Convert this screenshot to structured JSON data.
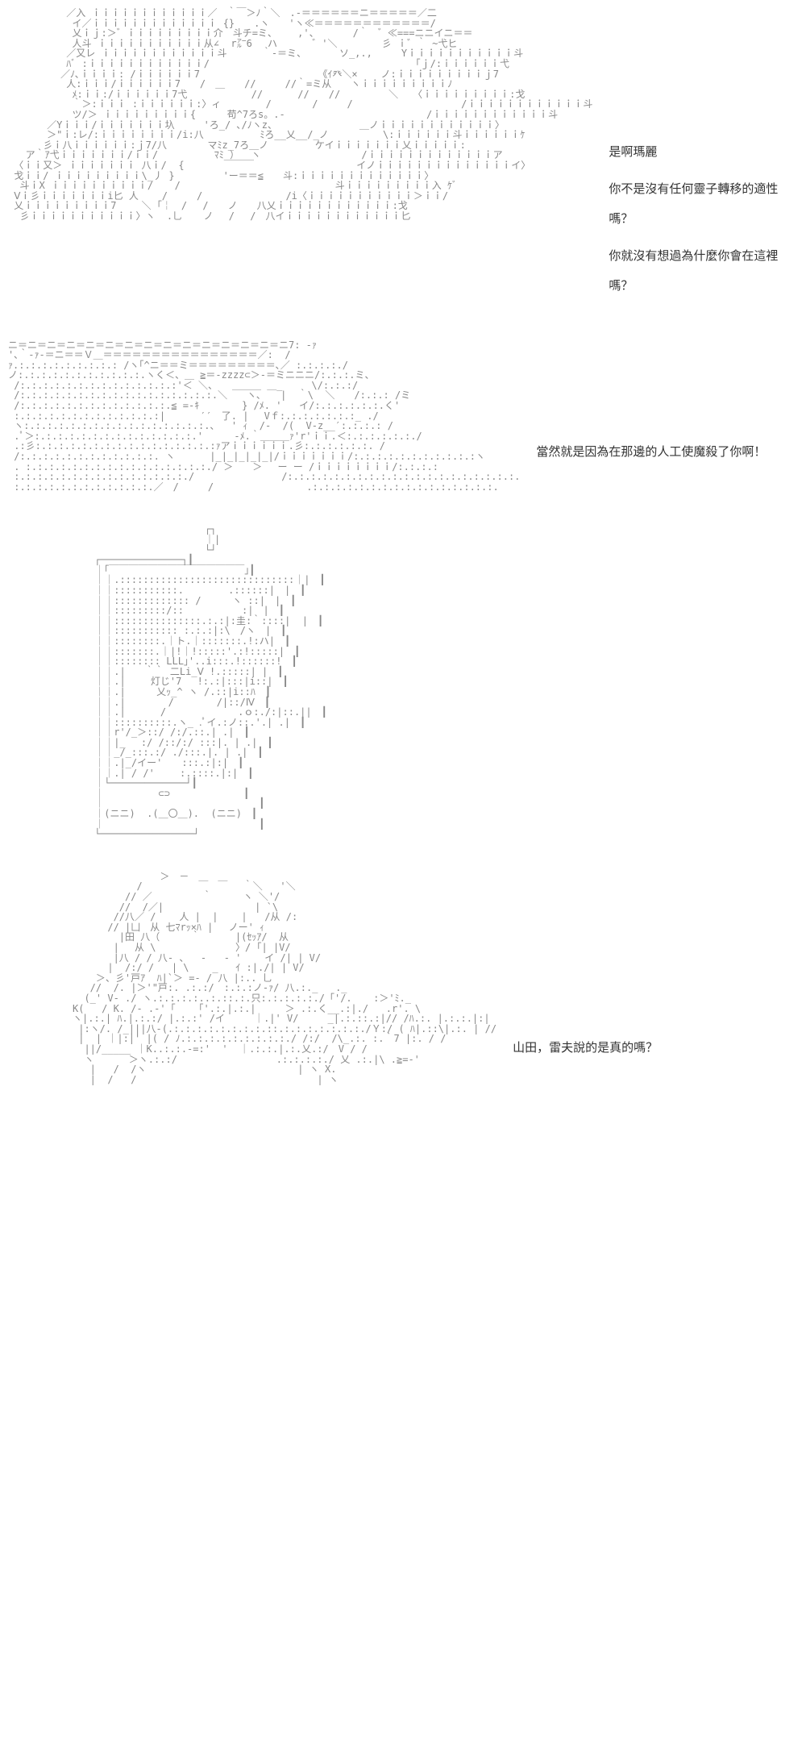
{
  "panels": [
    {
      "ascii": "          ／入 ｉｉｉｉｉｉｉｉｉｉｉｉ／　｀￣＞ﾉ｀＼　.-＝＝＝＝＝＝ニ＝＝＝＝＝／二\n           イ／ｉｉｉｉｉｉｉｉｉｉｉｉｉ {}　　.ヽ　　'ヽ≪＝＝＝＝＝＝＝＝＝＝＝＝/\n           乂ｉｊ:＞゛ｉｉｉｉｉｉｉｉｉ介　斗チ=ミ、　　 ,'、　　　　/｀　゛≪===ニニイニ＝＝\n           人斗 ｉｉｉｉｉｉｉｉｉｉｉ从∠  r㌃6 　ハ　　　 ゛'＼ 　　　　彡 ｉ゛｀ ~弋ヒ\n          ／又レ ｉｉｉｉｉｉｉｉｉｉｉｉ斗      ｀-＝ミ、    　ソ_,.,　　　Yｉｉｉｉｉｉｉｉｉｉｉ斗\n          ﾊﾞ :ｉｉｉｉｉｉｉｉｉｉｉｉ/　　　　　　　　　　　　　　　　　　　   「ｊ/:ｉｉｉｉｉｉ弋\n         ／ﾉ､ｉｉｉｉ: /ｉｉｉｉｉｉ7　　　　　　　　　　　  《ｲ癶＼×    ノ:ｉｉｉｉｉｉｉｉｉｊ7\n          人:ｉｉｉ/ｉｉｉｉｉｉ7　　/　＿　　//　　　//｀=ミ从　　ヽｉｉｉｉｉｉｉｉｉﾉ\n           ﾒ:ｉｉ:/ｉｉｉｉｉｉ7弋　　　　　　 // 　　　//　　//　　　　　＼　　〈ｉｉｉｉｉｉｉｉｉ:戈\n           ｀＞:ｉｉｉ :ｉｉｉｉｉｉ:〉ィ　　　　 /　　　  /　　　/ 　　　　　　　　　　 /ｉｉｉｉｉｉｉｉｉｉｉｉ斗\n           ツ/＞ ｉｉｉｉｉｉｉｉｉ{  　　苟^7ろs。.-　　　　　　　　 　　　　　　/ｉｉｉｉｉｉｉｉｉｉｉｉ斗\n　     ／Yｉｉｉ/ｉｉｉｉｉｉｉ圦　　　'ろ_/ ､/ﾉヽz、　　　　　　　　　＿ノｉｉｉｉｉｉｉｉｉｉｉｉ〉\n     　＞\"ｉ:レ/:ｉｉｉｉｉｉｉｉ/i:八　　　 　  ﾐろ__乂__/_ノ　　　 　　\\:ｉｉｉｉｉｉ斗ｉｉｉｉｉｉｹ\n      彡ｉ八ｉｉｉｉｉｉ:ｊ7/八  　　　マﾐz_7ろ＿ノ　 　  　ケイｉｉｉｉｉｉｉ乂ｉｉｉｉｉ:\n   ア｀ｱ弋ｉｉｉｉｉｉｉ/ｉｉ/  　　　　 ﾏﾐ_）  ヽ　　　　　　　　    /ｉｉｉｉｉｉｉｉｉｉｉｉｉア\n 〈ｉｉ又＞ ｉｉｉｉｉｉｉ 八ｉ/  {  　　　￣￣￣　　　　　　　　 　　イノｉｉｉｉｉｉｉｉｉｉｉｉｉｉイ〉\n 戈ｉｉ/ ｉｉｉｉｉｉｉｉｉ\\_丿 }　　　　　'ー＝＝≦　　斗:ｉｉｉｉｉｉｉｉｉｉｉｉｉ〉\n  斗ｉX ｉｉｉｉｉｉｉｉｉｉ/　  /　　　　　　　　　　　　　　　　斗ｉｉｉｉｉｉｉｉｉ入 ｹﾞ\n Ⅴｉ彡ｉｉｉｉｉｉｉi匕 人    /　　　/　　　　　　　　 /i〈ｉｉｉｉｉｉｉｉｉｉｉ＞ｉｉ/\n 乂ｉｉｉｉｉｉｉｉｉ7　　 ＼ ｢￤　/　 /　　ノ　　八乂ｉｉｉｉｉｉｉｉｉｉｉｉ:戈\n  彡ｉｉｉｉｉｉｉｉｉｉｉ〉ヽ  .乚　  ノ　 /　 /　八イｉｉｉｉｉｉｉｉｉｉｉｉ匕",
      "lines": [
        "是啊瑪麗",
        "你不是沒有任何靈子轉移的適性嗎？",
        "你就沒有想過為什麼你會在這裡嗎？"
      ]
    },
    {
      "ascii": "ニ＝ニ＝ニ＝ニ＝ニ＝ニ＝ニ＝ニ＝ニ＝ニ＝ニ＝ニ＝ニ＝ニ＝ニ7: -ｧ\n'､｀-ｧ-＝ニ＝＝Ｖ＿＝＝＝＝＝＝＝＝＝＝＝＝＝＝＝＝／:  /\nｧ.:.:.:.:.:.:.:.:.: /ヽ｢^ニ＝＝ミ＝＝＝＝＝＝＝＝＝､／ :.:.:.:./\nノ:.:.:.:.:.:.:.:.:.:.:.ヽく＜、＿ ≧＝-zzzz⊂＞-＝ミニニニ/:.:.:.ミ、\n /:.:.:.:.:.:.:.:.:.:.:.:.:.:'＜ ＼、　　＿＿＿ ＿_　　　\\/:.:.:/\n /:.:.:.:.:.:.:.:.:.:.:.:.:.:.:.:.:.＼　　ヽ､　　|  ｀\\  ＼　　/:.:.: /ミ\n /:.:.:.:.:.:.:.:.:.:.:.:.:.≦ =-ｷ　  　  } /ﾒ. '   イ/:.:.:.:.:.:.く'\n :.:.:.:.:.:.:.:.:.:.:.:.:| 　　　′′　了. | 　Vｆ:.:.:.:.:.:.:_ ./\n ヽ:.:.:.:.:.:.:.:.:.:.:.:.:.:.:.:.、  ' ｨ  /-  /(  V-z__′:.:.:.: /\n .ﾟ＞:.:.:.:.:.:.:.:.:.:.:.:.:.:.' 　　 -ﾒ.｀＿＿＿ｧ'r'ｉｉ.＜:.:.:.:.:.:./\n .:彡:.:.:.:.:.:.:.:.:.:.:.:.:.:.:.:ｧアｉｉｉｉｉｉ.彡:.:.:.:.:.:. /\n /:.:.:.:.:.:.:.:.:.:.:.:. ヽ　　　 |_|_|_|_|_|/ｉｉｉｉｉｉｉ/:.:.:.:.:.:.:.:.:.:.:ヽ\n . :.:.:.:.:.:.:.:.:.:.:.:.:.:.:.:./ ＞　　＞　 ー ー /ｉｉｉｉｉｉｉｉ/:.:.:.:\n :.:.:.:.:.:.:.:.:.:.:.:.:.:.:./　　　　　　　　　/:.:.:.:.:.:.:.:.:.:.:.:.:.:.:.:.:.:.:.:.\n :.:.:.:.:.:.:.:.:.:.:.:.／　/　　　/　 　　　　　　　　.:.:.:.:.:.:.:.:.:.:.:.:.:.:.:.:.",
      "lines": [
        "當然就是因為在那邊的人工使魔殺了你啊！"
      ]
    },
    {
      "ascii": "　　　　　　　　　　　　┌┐\n　　　　　　　　　　　　｜|\n　　　　　　　　　　　　└┘\n ┌──────────────┐┃\n ｜｢￣￣￣￣￣￣￣￣￣￣￣￣￣￣｣┃\n ｜｜.::::::::::::::::::::::::::::::｜|　┃\n ｜｜:::::::::::.　　　　 .::::::|　|　┃\n ｜｜::::::::::::: /　 　 ヽ ::|　|　┃\n ｜｜:::::::::/:: 　　  　  :|　|　┃\n ｜｜:::::::::::::::.:.:|:圭:｀::::|  |　┃\n ｜｜::::::::::: :.:.:|:\\　/ヽ　|　┃\n ｜｜::::::::.｜ト.｜:::::::.!:ハ|　┃\n ｜｜:::::::.｜|!｜!:::::'.:!:::::|　┃\n ｜｜:::::::: LLL｣'..i:::.!::::::!　┃\n ｜｜.|　　｀｀ 二Li_Ⅴ !.:::::| |　┃\n ｜｜.| 　　灯じ'7　 !:.:|:::|i::|　┃\n ｜｜.|  　　乂ｯ_^ ヽ /.::|i::ﾊ　┃\n ｜｜.|  　　  / 　　   /|::/Ⅳ　┃\n ｜｜.| 　　　/ 　 　       .ｏ:./:|::.||　┃\n ｜｜::::::::::.ヽ_ .ﾟイ.:ノ::.'.| .|　┃\n ｜｜r'/_＞::/ /:/.::.| .|　┃\n ｜｜|_ 　:/ /::/:/ :::|. | .|　┃\n ｜｜_/_:::.:/ ./:::.|. | .|　┃\n ｜｜.|_/イー'　　:::.:|:|　┃\n ｜｜.| / /'　　 :.::::.|:|　┃\n ｜└─────────────┘┃\n ｜　　　　　 ⊂⊃ 　　　　　　　┃\n ｜　　　　　　　　　　　　　　　　┃\n ｜(ニニ)  .(＿〇＿).  (ニニ)　┃\n ｜　　　　　　　　　　　　　　　　┃\n └────────────────┘",
      "lines": []
    },
    {
      "ascii": "               ＞　－　＿　＿\n           /     　　　　　    ｀＼   '＼\n         // ／　　  　　｀　　  ヽ ＼'/\n        //  /／|   　  　　　    | `\\\n       //八／ /    人 |  |    |   /从 /:\n      // |凵　从 七ﾏrｯ×ﾊ | 　ノー' ｨ\n        |田 八（　　  ｀　　　 |(ｾｯｱ/  从\n       |　 从 \\　　　      　 〉/ ｢| |V/\n       |八 / / 八- 、  -   - '    イ /| | V/\n      |  /:/ /   | \\    _   ｲ :|./| | V/\n    ＞、彡'戸ｱ  ﾊ|`＞ =- / 八 |:.. 乚\n   //  /. |＞'\"戸:. .:.:/　:.:.:ノ-ｧ/ 八.:._   ._\n  (_' V- ./ ヽ.:.:.:.:..:.::.:.只:.:.:.:.:./「'/. 　 :＞'ﾐ._\nK(   / K. /- .-'「    ｢'.:.|.:.|     ＞ .:.く__.:|./   .r'. \\\nヽ|.:.| ﾊ.|.:.:/ |.:.:' /イ     ｜.|' V/     _|.:.::.:|// /ﾊ.:. |.:.:.|:|\n |:ヽ/. /_|||八-(.:.:.:.:.:.:.:.:.::.:.:.:.:.:.:.:./Ｙ:/ ( ﾊ|.::\\|.:. | //\n |  | ｜|:|' |( / ﾉ.:.:.:.:.:.:.:.:.:./ /:/  /\\_.:. :.｀7 |:. / /\n  ||/_____ ｜K..:.:.-=:'  '  ｜.:.:.|.:.乂.:/　V / /\n  ヽ      ＞ヽ.:.:/                 .:.:.:.:./ 乂 .:.|\\ .≧=-'\n   |   /  /ヽ                          | ヽ X.\n   |  /   /                               | ヽ",
      "lines": [
        "山田，雷夫說的是真的嗎？"
      ]
    }
  ],
  "style": {
    "ascii_color": "#888888",
    "text_color": "#333333",
    "background": "#ffffff",
    "ascii_fontsize": 12,
    "dialogue_fontsize": 15
  }
}
